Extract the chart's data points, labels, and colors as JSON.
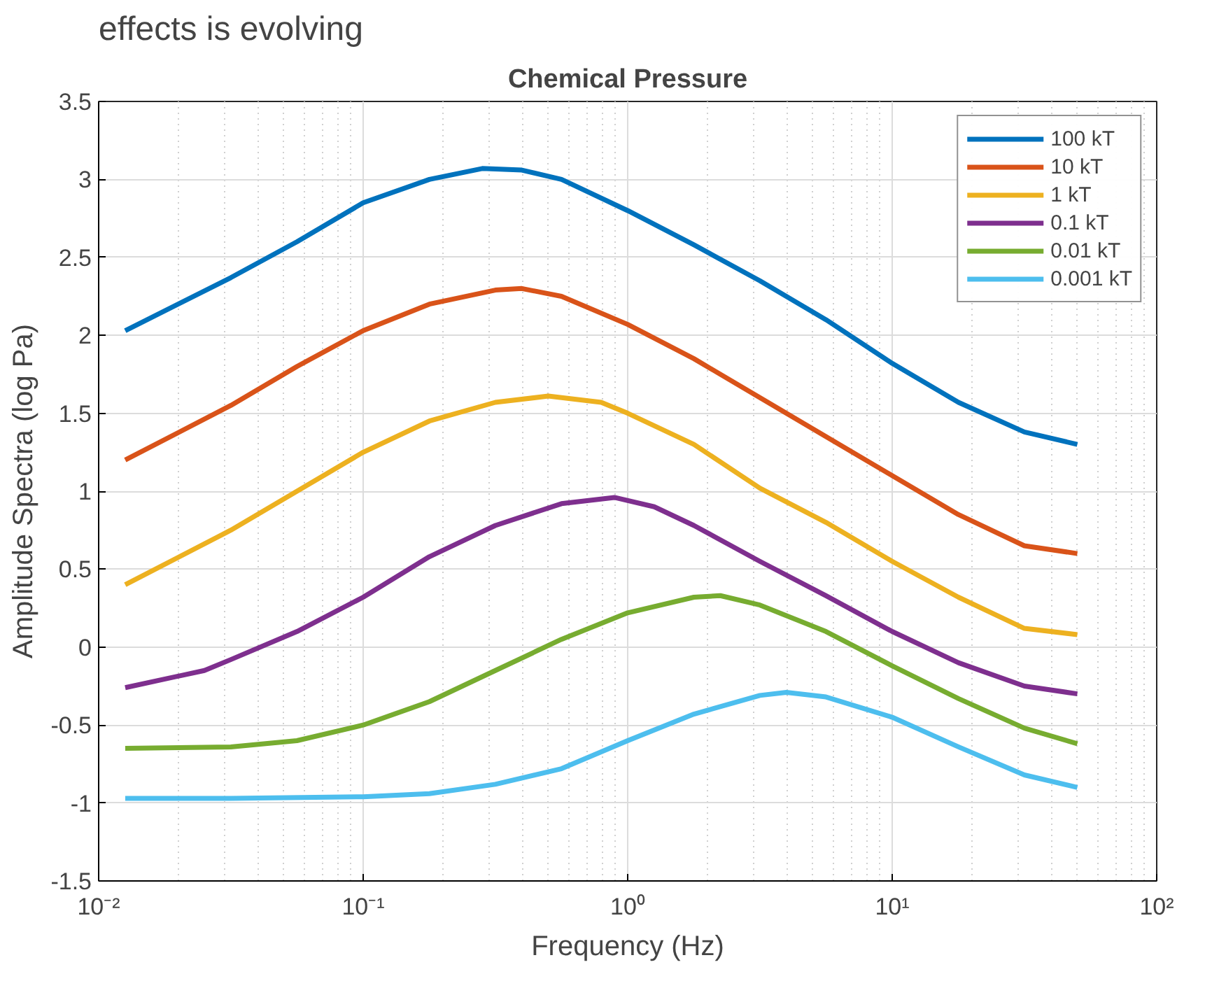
{
  "chart_data": {
    "type": "line",
    "title": "Chemical Pressure",
    "xlabel": "Frequency (Hz)",
    "ylabel": "Amplitude Spectra (log Pa)",
    "annotations": [
      "effects is evolving"
    ],
    "log": "x",
    "grid": true,
    "legend": "top right",
    "marker": "none",
    "line_style": "solid",
    "xlim": [
      0.01,
      100
    ],
    "xticks": [
      {
        "value": 0.01,
        "label": "10⁻²"
      },
      {
        "value": 0.1,
        "label": "10⁻¹"
      },
      {
        "value": 1,
        "label": "10⁰"
      },
      {
        "value": 10,
        "label": "10¹"
      },
      {
        "value": 100,
        "label": "10²"
      }
    ],
    "ylim": [
      -1.5,
      3.5
    ],
    "yticks": [
      -1.5,
      -1,
      -0.5,
      0,
      0.5,
      1,
      1.5,
      2,
      2.5,
      3,
      3.5
    ],
    "series": [
      {
        "name": "100 kT",
        "color": "#0072bd",
        "x": [
          0.0126,
          0.0316,
          0.0562,
          0.1,
          0.178,
          0.282,
          0.398,
          0.562,
          1,
          1.78,
          3.16,
          5.62,
          10,
          17.8,
          31.6,
          50.1
        ],
        "values": [
          2.03,
          2.37,
          2.6,
          2.85,
          3.0,
          3.07,
          3.06,
          3.0,
          2.8,
          2.58,
          2.35,
          2.1,
          1.82,
          1.57,
          1.38,
          1.3
        ]
      },
      {
        "name": "10 kT",
        "color": "#d95319",
        "x": [
          0.0126,
          0.0316,
          0.0562,
          0.1,
          0.178,
          0.316,
          0.398,
          0.562,
          1,
          1.78,
          3.16,
          5.62,
          10,
          17.8,
          31.6,
          50.1
        ],
        "values": [
          1.2,
          1.55,
          1.8,
          2.03,
          2.2,
          2.29,
          2.3,
          2.25,
          2.07,
          1.85,
          1.6,
          1.35,
          1.1,
          0.85,
          0.65,
          0.6
        ]
      },
      {
        "name": "1 kT",
        "color": "#edb120",
        "x": [
          0.0126,
          0.0316,
          0.0562,
          0.1,
          0.178,
          0.316,
          0.501,
          0.794,
          1,
          1.78,
          3.16,
          5.62,
          10,
          17.8,
          31.6,
          50.1
        ],
        "values": [
          0.4,
          0.75,
          1.0,
          1.25,
          1.45,
          1.57,
          1.61,
          1.57,
          1.5,
          1.3,
          1.02,
          0.8,
          0.55,
          0.32,
          0.12,
          0.08
        ]
      },
      {
        "name": "0.1 kT",
        "color": "#7e2f8e",
        "x": [
          0.0126,
          0.0251,
          0.0316,
          0.0562,
          0.1,
          0.178,
          0.316,
          0.562,
          0.891,
          1.26,
          1.78,
          3.16,
          5.62,
          10,
          17.8,
          31.6,
          50.1
        ],
        "values": [
          -0.26,
          -0.15,
          -0.08,
          0.1,
          0.32,
          0.58,
          0.78,
          0.92,
          0.96,
          0.9,
          0.78,
          0.55,
          0.33,
          0.1,
          -0.1,
          -0.25,
          -0.3
        ]
      },
      {
        "name": "0.01 kT",
        "color": "#77ac30",
        "x": [
          0.0126,
          0.0316,
          0.0562,
          0.1,
          0.178,
          0.316,
          0.562,
          1,
          1.78,
          2.24,
          3.16,
          5.62,
          10,
          17.8,
          31.6,
          50.1
        ],
        "values": [
          -0.65,
          -0.64,
          -0.6,
          -0.5,
          -0.35,
          -0.15,
          0.05,
          0.22,
          0.32,
          0.33,
          0.27,
          0.1,
          -0.12,
          -0.33,
          -0.52,
          -0.62
        ]
      },
      {
        "name": "0.001 kT",
        "color": "#4dbeee",
        "x": [
          0.0126,
          0.0316,
          0.1,
          0.178,
          0.316,
          0.562,
          1,
          1.78,
          3.16,
          3.98,
          5.62,
          10,
          17.8,
          31.6,
          50.1
        ],
        "values": [
          -0.97,
          -0.97,
          -0.96,
          -0.94,
          -0.88,
          -0.78,
          -0.6,
          -0.43,
          -0.31,
          -0.29,
          -0.32,
          -0.45,
          -0.64,
          -0.82,
          -0.9
        ]
      }
    ]
  }
}
